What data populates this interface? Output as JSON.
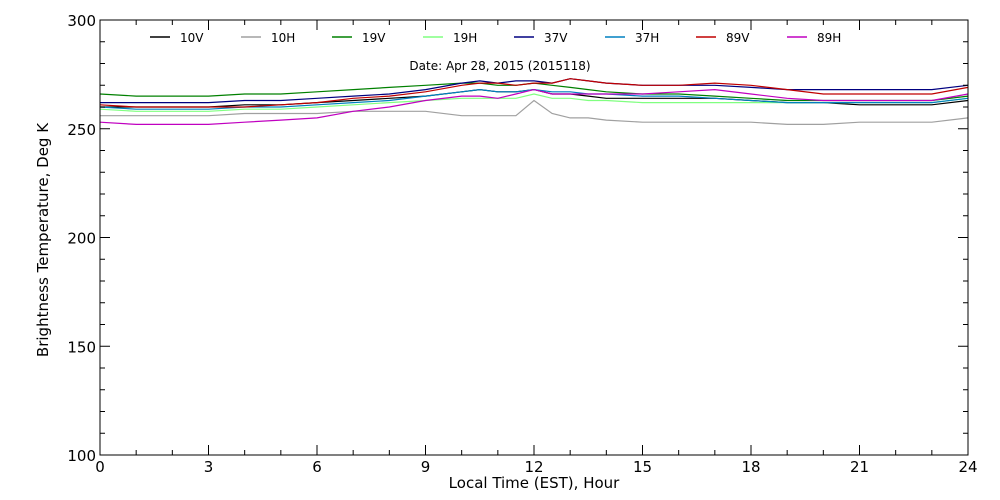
{
  "chart_data": {
    "type": "line",
    "title": "",
    "annotation": "Date: Apr 28, 2015 (2015118)",
    "xlabel": "Local Time (EST), Hour",
    "ylabel": "Brightness Temperature, Deg K",
    "xlim": [
      0,
      24
    ],
    "ylim": [
      100,
      300
    ],
    "xticks": [
      0,
      3,
      6,
      9,
      12,
      15,
      18,
      21,
      24
    ],
    "yticks": [
      100,
      150,
      200,
      250,
      300
    ],
    "x_tick_labels": [
      "0",
      "3",
      "6",
      "9",
      "12",
      "15",
      "18",
      "21",
      "24"
    ],
    "y_tick_labels": [
      "100",
      "150",
      "200",
      "250",
      "300"
    ],
    "grid": false,
    "legend_position": "top",
    "x": [
      0,
      1,
      2,
      3,
      4,
      5,
      6,
      7,
      8,
      9,
      10,
      10.5,
      11,
      11.5,
      12,
      12.5,
      13,
      13.5,
      14,
      15,
      16,
      17,
      18,
      19,
      20,
      21,
      22,
      23,
      24
    ],
    "series": [
      {
        "name": "10V",
        "color": "#000000",
        "values": [
          260,
          260,
          260,
          260,
          261,
          261,
          262,
          263,
          264,
          265,
          267,
          268,
          267,
          267,
          268,
          266,
          266,
          265,
          264,
          264,
          264,
          264,
          263,
          262,
          262,
          261,
          261,
          261,
          263
        ]
      },
      {
        "name": "10H",
        "color": "#a0a0a0",
        "values": [
          256,
          256,
          256,
          256,
          257,
          257,
          257,
          258,
          258,
          258,
          256,
          256,
          256,
          256,
          263,
          257,
          255,
          255,
          254,
          253,
          253,
          253,
          253,
          252,
          252,
          253,
          253,
          253,
          255
        ]
      },
      {
        "name": "19V",
        "color": "#008000",
        "values": [
          266,
          265,
          265,
          265,
          266,
          266,
          267,
          268,
          269,
          270,
          271,
          271,
          270,
          270,
          271,
          270,
          269,
          268,
          267,
          266,
          266,
          265,
          264,
          263,
          263,
          263,
          263,
          263,
          265
        ]
      },
      {
        "name": "19H",
        "color": "#80ff80",
        "values": [
          259,
          258,
          258,
          258,
          259,
          259,
          260,
          261,
          262,
          263,
          264,
          264,
          264,
          264,
          266,
          264,
          264,
          263,
          263,
          262,
          262,
          262,
          262,
          262,
          262,
          262,
          262,
          262,
          264
        ]
      },
      {
        "name": "37V",
        "color": "#000080",
        "values": [
          262,
          262,
          262,
          262,
          263,
          263,
          264,
          265,
          266,
          268,
          271,
          272,
          271,
          272,
          272,
          271,
          273,
          272,
          271,
          270,
          270,
          270,
          269,
          268,
          268,
          268,
          268,
          268,
          270
        ]
      },
      {
        "name": "37H",
        "color": "#0080c0",
        "values": [
          260,
          259,
          259,
          259,
          260,
          260,
          261,
          262,
          263,
          265,
          267,
          268,
          267,
          267,
          268,
          267,
          267,
          266,
          266,
          265,
          265,
          264,
          263,
          262,
          262,
          262,
          262,
          262,
          264
        ]
      },
      {
        "name": "89V",
        "color": "#c00000",
        "values": [
          261,
          260,
          260,
          260,
          260,
          261,
          262,
          264,
          265,
          267,
          270,
          271,
          271,
          270,
          271,
          271,
          273,
          272,
          271,
          270,
          270,
          271,
          270,
          268,
          266,
          266,
          266,
          266,
          269
        ]
      },
      {
        "name": "89H",
        "color": "#c000c0",
        "values": [
          253,
          252,
          252,
          252,
          253,
          254,
          255,
          258,
          260,
          263,
          265,
          265,
          264,
          266,
          268,
          266,
          266,
          266,
          266,
          266,
          267,
          268,
          266,
          264,
          263,
          263,
          263,
          263,
          266
        ]
      }
    ]
  }
}
